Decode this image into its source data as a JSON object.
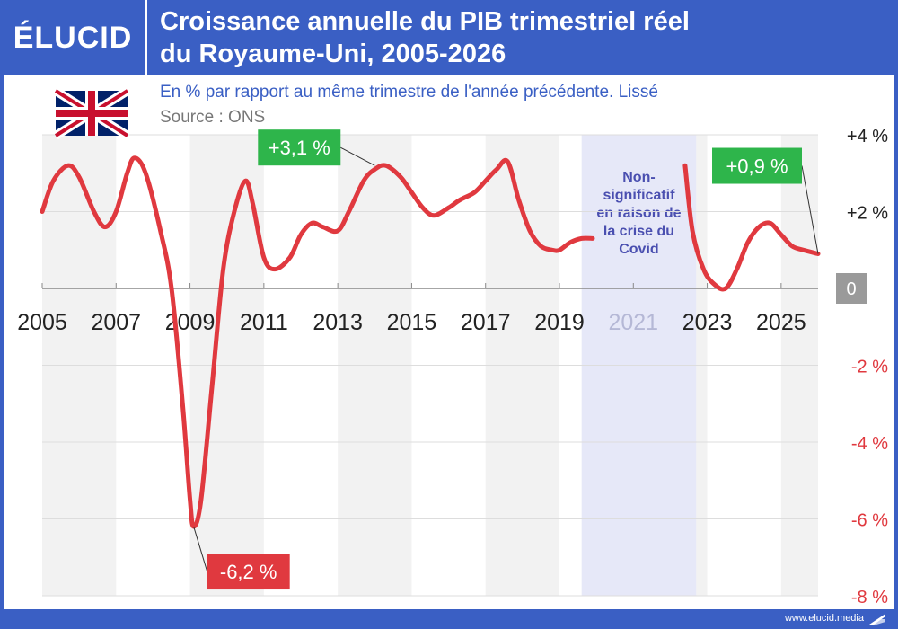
{
  "brand": {
    "logo_text": "ÉLUCID",
    "footer": "www.elucid.media"
  },
  "header": {
    "title_line1": "Croissance annuelle du PIB trimestriel réel",
    "title_line2": "du Royaume-Uni, 2005-2026"
  },
  "colors": {
    "brand": "#3a5fc4",
    "series": "#e0393f",
    "positive_label": "#2eb54b",
    "negative_label": "#e0393f",
    "covid_band": "#e6e8f8",
    "covid_text": "#4a4fb0"
  },
  "chart_data": {
    "type": "line",
    "title": "Croissance annuelle du PIB trimestriel réel du Royaume-Uni, 2005-2026",
    "subtitle": "En % par rapport au même trimestre de l'année précédente. Lissé",
    "source": "Source : ONS",
    "flag_icon": "uk-flag-icon",
    "xlim": [
      2005,
      2026
    ],
    "ylim": [
      -8,
      4
    ],
    "x_ticks": [
      "2005",
      "2007",
      "2009",
      "2011",
      "2013",
      "2015",
      "2017",
      "2019",
      "2021",
      "2023",
      "2025"
    ],
    "y_ticks": [
      {
        "value": 4,
        "label": "+4 %"
      },
      {
        "value": 2,
        "label": "+2 %"
      },
      {
        "value": 0,
        "label": "0"
      },
      {
        "value": -2,
        "label": "-2 %"
      },
      {
        "value": -4,
        "label": "-4 %"
      },
      {
        "value": -6,
        "label": "-6 %"
      },
      {
        "value": -8,
        "label": "-8 %"
      }
    ],
    "grid": true,
    "series": [
      {
        "segments": [
          [
            [
              2005,
              2.0
            ],
            [
              2005.3,
              2.8
            ],
            [
              2005.7,
              3.2
            ],
            [
              2006.0,
              2.9
            ],
            [
              2006.4,
              2.0
            ],
            [
              2006.7,
              1.6
            ],
            [
              2007.0,
              2.0
            ],
            [
              2007.3,
              3.0
            ],
            [
              2007.5,
              3.4
            ],
            [
              2007.8,
              3.0
            ],
            [
              2008.2,
              1.5
            ],
            [
              2008.5,
              0.0
            ],
            [
              2008.8,
              -3.0
            ],
            [
              2009.0,
              -5.5
            ],
            [
              2009.1,
              -6.2
            ],
            [
              2009.3,
              -5.5
            ],
            [
              2009.6,
              -2.5
            ],
            [
              2009.9,
              0.5
            ],
            [
              2010.2,
              2.0
            ],
            [
              2010.5,
              2.8
            ],
            [
              2010.7,
              2.2
            ],
            [
              2011.0,
              0.8
            ],
            [
              2011.3,
              0.5
            ],
            [
              2011.7,
              0.8
            ],
            [
              2012.0,
              1.4
            ],
            [
              2012.3,
              1.7
            ],
            [
              2012.6,
              1.6
            ],
            [
              2013.0,
              1.5
            ],
            [
              2013.3,
              2.0
            ],
            [
              2013.7,
              2.8
            ],
            [
              2014.0,
              3.1
            ],
            [
              2014.3,
              3.2
            ],
            [
              2014.7,
              2.9
            ],
            [
              2015.0,
              2.5
            ],
            [
              2015.3,
              2.1
            ],
            [
              2015.6,
              1.9
            ],
            [
              2016.0,
              2.1
            ],
            [
              2016.3,
              2.3
            ],
            [
              2016.7,
              2.5
            ],
            [
              2017.0,
              2.8
            ],
            [
              2017.3,
              3.1
            ],
            [
              2017.6,
              3.3
            ],
            [
              2017.9,
              2.3
            ],
            [
              2018.2,
              1.5
            ],
            [
              2018.5,
              1.1
            ],
            [
              2018.8,
              1.0
            ],
            [
              2019.0,
              1.0
            ],
            [
              2019.3,
              1.2
            ],
            [
              2019.6,
              1.3
            ],
            [
              2019.9,
              1.3
            ]
          ],
          [
            [
              2022.4,
              3.2
            ],
            [
              2022.6,
              1.5
            ],
            [
              2022.9,
              0.5
            ],
            [
              2023.2,
              0.1
            ],
            [
              2023.5,
              0.0
            ],
            [
              2023.8,
              0.5
            ],
            [
              2024.1,
              1.2
            ],
            [
              2024.4,
              1.6
            ],
            [
              2024.7,
              1.7
            ],
            [
              2025.0,
              1.4
            ],
            [
              2025.3,
              1.1
            ],
            [
              2025.6,
              1.0
            ],
            [
              2026.0,
              0.9
            ]
          ]
        ]
      }
    ],
    "covid_band": {
      "x_start": 2019.6,
      "x_end": 2022.7,
      "label_lines": [
        "Non-",
        "significatif",
        "en raison de",
        "la crise du",
        "Covid"
      ]
    },
    "annotations": [
      {
        "text": "+3,1 %",
        "x": 2014.0,
        "y": 3.2,
        "kind": "positive"
      },
      {
        "text": "-6,2 %",
        "x": 2009.1,
        "y": -6.2,
        "kind": "negative"
      },
      {
        "text": "+0,9 %",
        "x": 2026.0,
        "y": 0.9,
        "kind": "positive"
      }
    ]
  }
}
